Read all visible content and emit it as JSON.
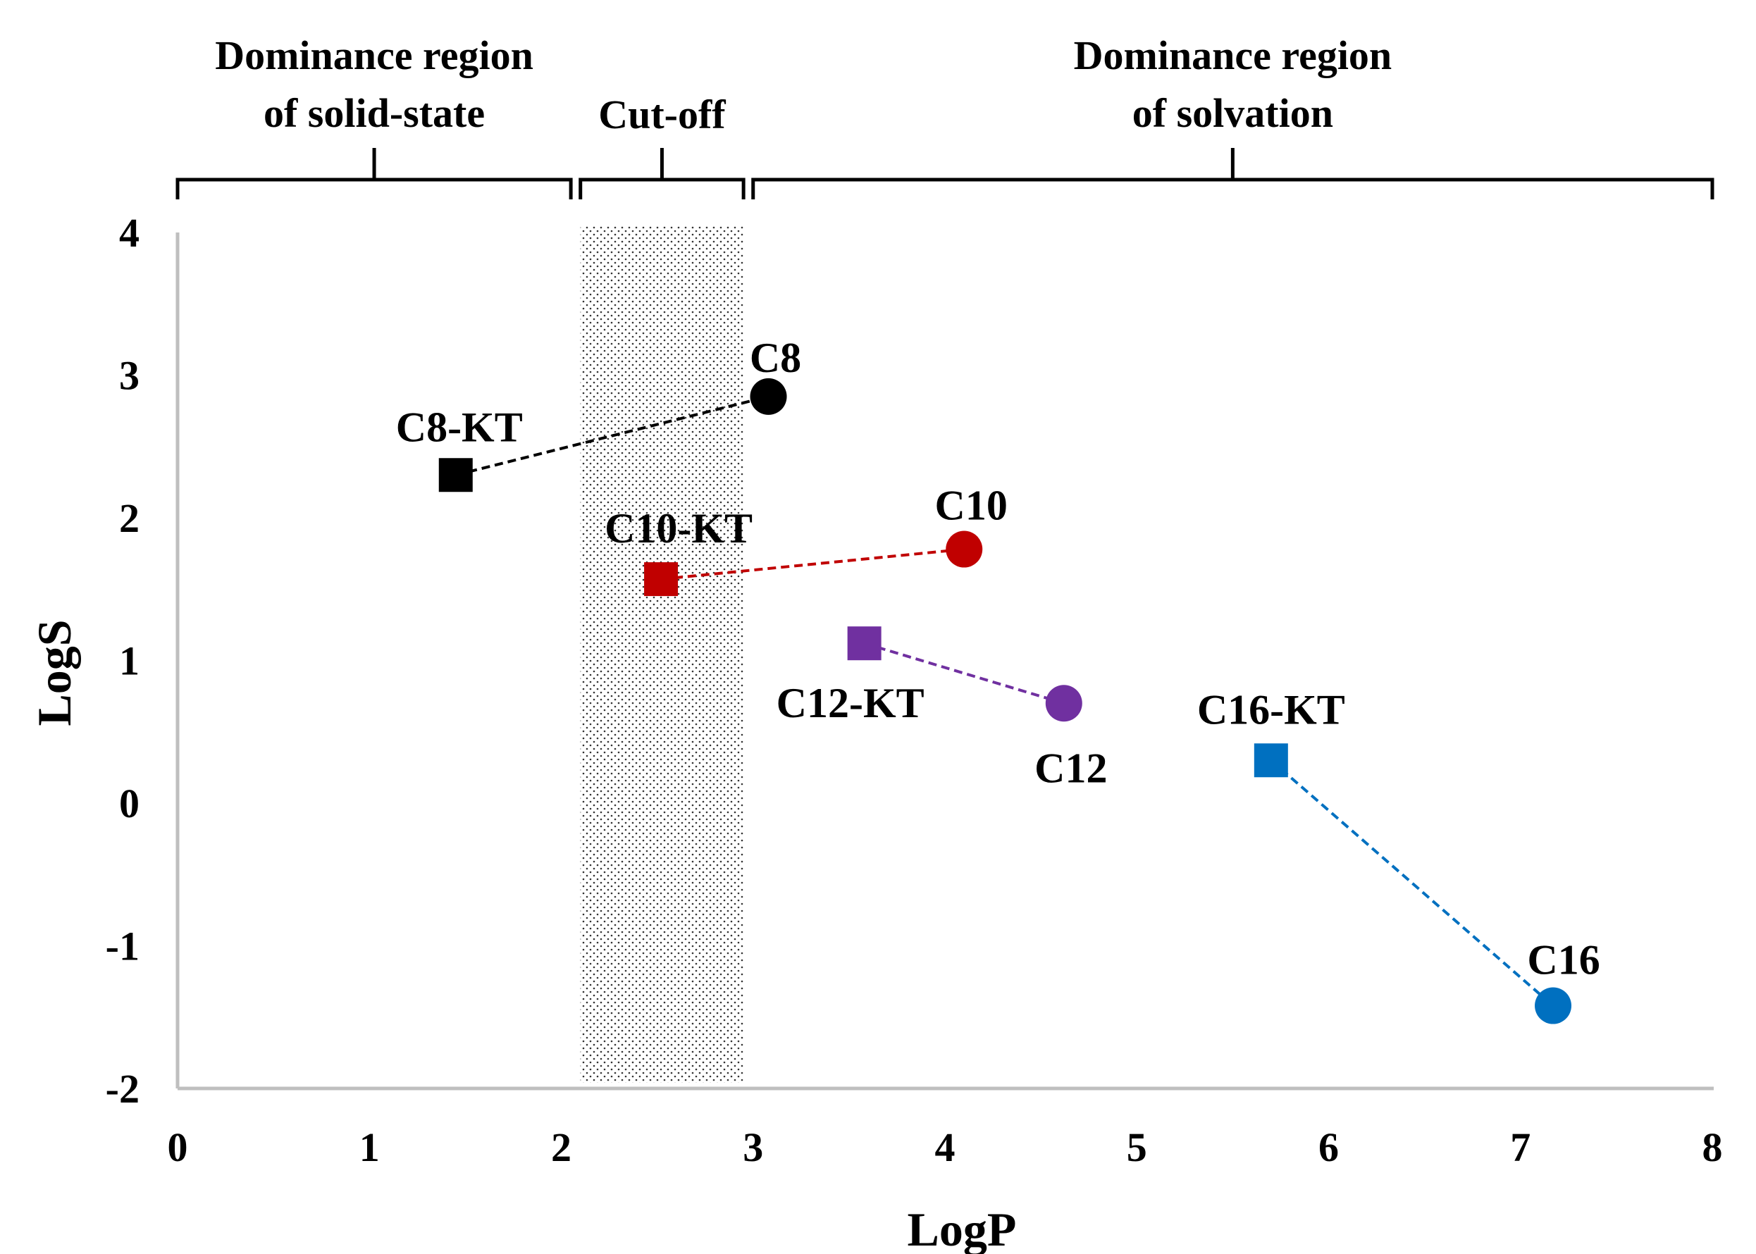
{
  "chart_data": {
    "type": "scatter",
    "title": "",
    "xlabel": "LogP",
    "ylabel": "LogS",
    "xlim": [
      0,
      8
    ],
    "ylim": [
      -2,
      4
    ],
    "xticks": [
      "0",
      "1",
      "2",
      "3",
      "4",
      "5",
      "6",
      "7",
      "8"
    ],
    "yticks": [
      "-2",
      "-1",
      "0",
      "1",
      "2",
      "3",
      "4"
    ],
    "grid": false,
    "regions": [
      {
        "name": "solid-state",
        "label_lines": [
          "Dominance region",
          "of solid-state"
        ],
        "x_range": [
          0,
          2.05
        ]
      },
      {
        "name": "cut-off",
        "label_lines": [
          "Cut-off"
        ],
        "x_range": [
          2.1,
          2.95
        ],
        "shaded": true
      },
      {
        "name": "solvation",
        "label_lines": [
          "Dominance region",
          "of solvation"
        ],
        "x_range": [
          3.0,
          8.0
        ]
      }
    ],
    "series": [
      {
        "name": "C8",
        "color": "#000000",
        "points": [
          {
            "label": "C8-KT",
            "x": 1.45,
            "y": 2.3,
            "marker": "square"
          },
          {
            "label": "C8",
            "x": 3.08,
            "y": 2.85,
            "marker": "circle"
          }
        ]
      },
      {
        "name": "C10",
        "color": "#c00000",
        "points": [
          {
            "label": "C10-KT",
            "x": 2.52,
            "y": 1.57,
            "marker": "square"
          },
          {
            "label": "C10",
            "x": 4.1,
            "y": 1.78,
            "marker": "circle"
          }
        ]
      },
      {
        "name": "C12",
        "color": "#7030a0",
        "points": [
          {
            "label": "C12-KT",
            "x": 3.58,
            "y": 1.12,
            "marker": "square"
          },
          {
            "label": "C12",
            "x": 4.62,
            "y": 0.7,
            "marker": "circle"
          }
        ]
      },
      {
        "name": "C16",
        "color": "#0070c0",
        "points": [
          {
            "label": "C16-KT",
            "x": 5.7,
            "y": 0.3,
            "marker": "square"
          },
          {
            "label": "C16",
            "x": 7.17,
            "y": -1.42,
            "marker": "circle"
          }
        ]
      }
    ]
  }
}
